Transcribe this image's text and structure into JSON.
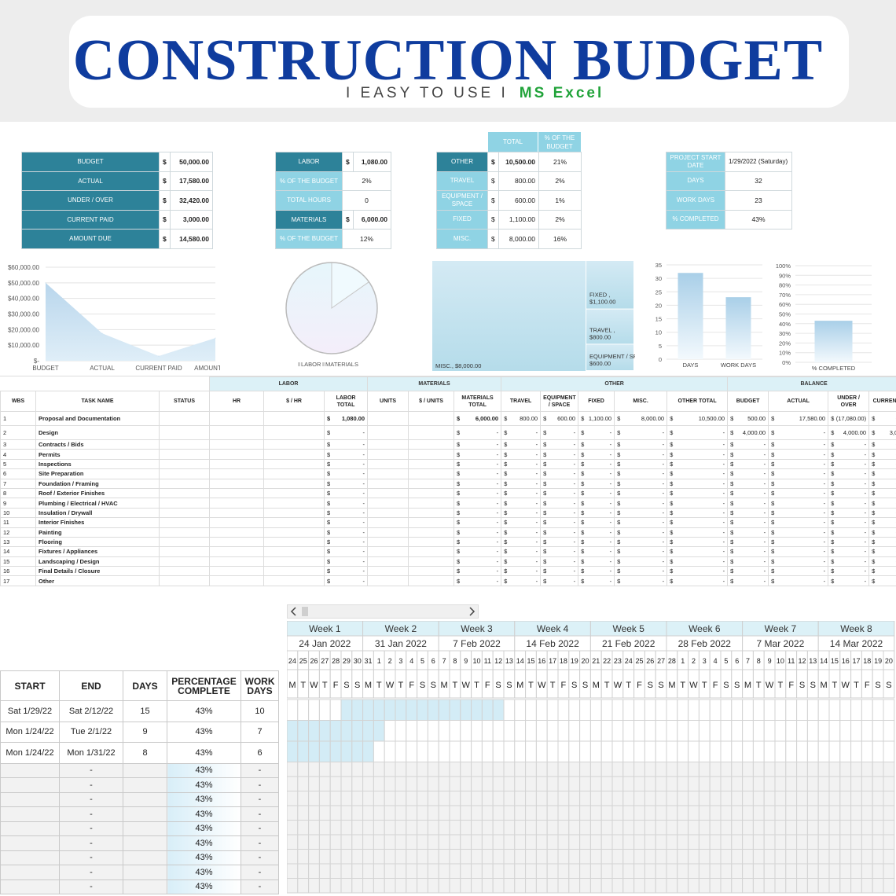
{
  "header": {
    "title": "CONSTRUCTION BUDGET",
    "subtitle": "I EASY TO USE I",
    "app": "MS Excel"
  },
  "summary": [
    {
      "label": "BUDGET",
      "cur": "$",
      "value": "50,000.00"
    },
    {
      "label": "ACTUAL",
      "cur": "$",
      "value": "17,580.00"
    },
    {
      "label": "UNDER / OVER",
      "cur": "$",
      "value": "32,420.00"
    },
    {
      "label": "CURRENT PAID",
      "cur": "$",
      "value": "3,000.00"
    },
    {
      "label": "AMOUNT DUE",
      "cur": "$",
      "value": "14,580.00"
    }
  ],
  "labor_box": [
    {
      "label": "LABOR",
      "cur": "$",
      "value": "1,080.00",
      "bold": true,
      "dark": true
    },
    {
      "label": "% OF THE BUDGET",
      "cur": "",
      "value": "2%",
      "dark": false
    },
    {
      "label": "TOTAL HOURS",
      "cur": "",
      "value": "0",
      "dark": false
    },
    {
      "label": "MATERIALS",
      "cur": "$",
      "value": "6,000.00",
      "bold": true,
      "dark": true
    },
    {
      "label": "% OF THE BUDGET",
      "cur": "",
      "value": "12%",
      "dark": false
    }
  ],
  "other_box": {
    "hdr_total": "TOTAL",
    "hdr_pct": "% OF THE BUDGET",
    "rows": [
      {
        "label": "OTHER",
        "cur": "$",
        "value": "10,500.00",
        "pct": "21%",
        "dark": true,
        "bold": true
      },
      {
        "label": "TRAVEL",
        "cur": "$",
        "value": "800.00",
        "pct": "2%"
      },
      {
        "label": "EQUIPMENT / SPACE",
        "cur": "$",
        "value": "600.00",
        "pct": "1%"
      },
      {
        "label": "FIXED",
        "cur": "$",
        "value": "1,100.00",
        "pct": "2%"
      },
      {
        "label": "MISC.",
        "cur": "$",
        "value": "8,000.00",
        "pct": "16%"
      }
    ]
  },
  "project_box": [
    {
      "label": "PROJECT START DATE",
      "value": "1/29/2022 (Saturday)"
    },
    {
      "label": "DAYS",
      "value": "32"
    },
    {
      "label": "WORK DAYS",
      "value": "23"
    },
    {
      "label": "% COMPLETED",
      "value": "43%"
    }
  ],
  "chart_data": [
    {
      "type": "area",
      "categories": [
        "BUDGET",
        "ACTUAL",
        "CURRENT PAID",
        "AMOUNT DUE"
      ],
      "values": [
        50000,
        17580,
        3000,
        14580
      ],
      "ylim": [
        0,
        60000
      ],
      "yticks": [
        "$-",
        "$10,000.00",
        "$20,000.00",
        "$30,000.00",
        "$40,000.00",
        "$50,000.00",
        "$60,000.00"
      ],
      "grid": true
    },
    {
      "type": "pie",
      "labels": [
        "LABOR",
        "MATERIALS"
      ],
      "values": [
        1080,
        6000
      ],
      "legend": "bottom"
    },
    {
      "type": "treemap",
      "labels": [
        "MISC., $8,000.00",
        "FIXED , $1,100.00",
        "TRAVEL, $800.00",
        "EQUIPMENT / SPACE , $600.00"
      ],
      "values": [
        8000,
        1100,
        800,
        600
      ]
    },
    {
      "type": "bar",
      "categories": [
        "DAYS",
        "WORK DAYS"
      ],
      "values": [
        32,
        23
      ],
      "ylim": [
        0,
        35
      ],
      "yticks": [
        "0",
        "5",
        "10",
        "15",
        "20",
        "25",
        "30",
        "35"
      ]
    },
    {
      "type": "bar",
      "categories": [
        "% COMPLETED"
      ],
      "values": [
        43
      ],
      "ylim": [
        0,
        100
      ],
      "yticks": [
        "0%",
        "10%",
        "20%",
        "30%",
        "40%",
        "50%",
        "60%",
        "70%",
        "80%",
        "90%",
        "100%"
      ]
    }
  ],
  "grid": {
    "groups": {
      "labor": "LABOR",
      "materials": "MATERIALS",
      "other": "OTHER",
      "balance": "BALANCE"
    },
    "headers": [
      "WBS",
      "TASK NAME",
      "STATUS",
      "HR",
      "$ / HR",
      "LABOR TOTAL",
      "UNITS",
      "$ / UNITS",
      "MATERIALS TOTAL",
      "TRAVEL",
      "EQUIPMENT / SPACE",
      "FIXED",
      "MISC.",
      "OTHER TOTAL",
      "BUDGET",
      "ACTUAL",
      "UNDER / OVER",
      "CURREN"
    ],
    "rows": [
      {
        "wbs": "1",
        "task": "Proposal and Documentation",
        "labor": "1,080.00",
        "mat": "6,000.00",
        "travel": "800.00",
        "equip": "600.00",
        "fixed": "1,100.00",
        "misc": "8,000.00",
        "other": "10,500.00",
        "budget": "500.00",
        "actual": "17,580.00",
        "uo": "(17,080.00)",
        "cur": "-"
      },
      {
        "wbs": "2",
        "task": "Design",
        "labor": "-",
        "mat": "-",
        "travel": "-",
        "equip": "-",
        "fixed": "-",
        "misc": "-",
        "other": "-",
        "budget": "4,000.00",
        "actual": "-",
        "uo": "4,000.00",
        "cur": "3,0"
      },
      {
        "wbs": "3",
        "task": "Contracts / Bids"
      },
      {
        "wbs": "4",
        "task": "Permits"
      },
      {
        "wbs": "5",
        "task": "Inspections"
      },
      {
        "wbs": "6",
        "task": "Site Preparation"
      },
      {
        "wbs": "7",
        "task": "Foundation / Framing"
      },
      {
        "wbs": "8",
        "task": "Roof / Exterior Finishes"
      },
      {
        "wbs": "9",
        "task": "Plumbing / Electrical / HVAC"
      },
      {
        "wbs": "10",
        "task": "Insulation / Drywall"
      },
      {
        "wbs": "11",
        "task": "Interior Finishes"
      },
      {
        "wbs": "12",
        "task": "Painting"
      },
      {
        "wbs": "13",
        "task": "Flooring"
      },
      {
        "wbs": "14",
        "task": "Fixtures / Appliances"
      },
      {
        "wbs": "15",
        "task": "Landscaping / Design"
      },
      {
        "wbs": "16",
        "task": "Final Details / Closure"
      },
      {
        "wbs": "17",
        "task": "Other"
      }
    ]
  },
  "schedule": {
    "headers": [
      "START",
      "END",
      "DAYS",
      "PERCENTAGE COMPLETE",
      "WORK DAYS"
    ],
    "rows": [
      {
        "start": "Sat 1/29/22",
        "end": "Sat 2/12/22",
        "days": "15",
        "pct": "43%",
        "work": "10"
      },
      {
        "start": "Mon 1/24/22",
        "end": "Tue 2/1/22",
        "days": "9",
        "pct": "43%",
        "work": "7"
      },
      {
        "start": "Mon 1/24/22",
        "end": "Mon 1/31/22",
        "days": "8",
        "pct": "43%",
        "work": "6"
      },
      {
        "start": "",
        "end": "-",
        "days": "",
        "pct": "43%",
        "work": "-"
      },
      {
        "start": "",
        "end": "-",
        "days": "",
        "pct": "43%",
        "work": "-"
      },
      {
        "start": "",
        "end": "-",
        "days": "",
        "pct": "43%",
        "work": "-"
      },
      {
        "start": "",
        "end": "-",
        "days": "",
        "pct": "43%",
        "work": "-"
      },
      {
        "start": "",
        "end": "-",
        "days": "",
        "pct": "43%",
        "work": "-"
      },
      {
        "start": "",
        "end": "-",
        "days": "",
        "pct": "43%",
        "work": "-"
      },
      {
        "start": "",
        "end": "-",
        "days": "",
        "pct": "43%",
        "work": "-"
      },
      {
        "start": "",
        "end": "-",
        "days": "",
        "pct": "43%",
        "work": "-"
      },
      {
        "start": "",
        "end": "-",
        "days": "",
        "pct": "43%",
        "work": "-"
      }
    ]
  },
  "gantt": {
    "weeks": [
      {
        "label": "Week 1",
        "date": "24 Jan 2022"
      },
      {
        "label": "Week 2",
        "date": "31 Jan 2022"
      },
      {
        "label": "Week 3",
        "date": "7 Feb 2022"
      },
      {
        "label": "Week 4",
        "date": "14 Feb 2022"
      },
      {
        "label": "Week 5",
        "date": "21 Feb 2022"
      },
      {
        "label": "Week 6",
        "date": "28 Feb 2022"
      },
      {
        "label": "Week 7",
        "date": "7 Mar 2022"
      },
      {
        "label": "Week 8",
        "date": "14 Mar 2022"
      }
    ],
    "days": [
      "24",
      "25",
      "26",
      "27",
      "28",
      "29",
      "30",
      "31",
      "1",
      "2",
      "3",
      "4",
      "5",
      "6",
      "7",
      "8",
      "9",
      "10",
      "11",
      "12",
      "13",
      "14",
      "15",
      "16",
      "17",
      "18",
      "19",
      "20",
      "21",
      "22",
      "23",
      "24",
      "25",
      "26",
      "27",
      "28",
      "1",
      "2",
      "3",
      "4",
      "5",
      "6",
      "7",
      "8",
      "9",
      "10",
      "11",
      "12",
      "13",
      "14",
      "15",
      "16",
      "17",
      "18",
      "19",
      "20"
    ],
    "dows": [
      "M",
      "T",
      "W",
      "T",
      "F",
      "S",
      "S"
    ],
    "bars": [
      {
        "start": 5,
        "len": 15
      },
      {
        "start": 0,
        "len": 9
      },
      {
        "start": 0,
        "len": 8
      }
    ]
  },
  "colors": {
    "dark": "#2d8299",
    "light": "#8fd3e4",
    "title": "#0f3c9e",
    "excel": "#21a33a"
  }
}
